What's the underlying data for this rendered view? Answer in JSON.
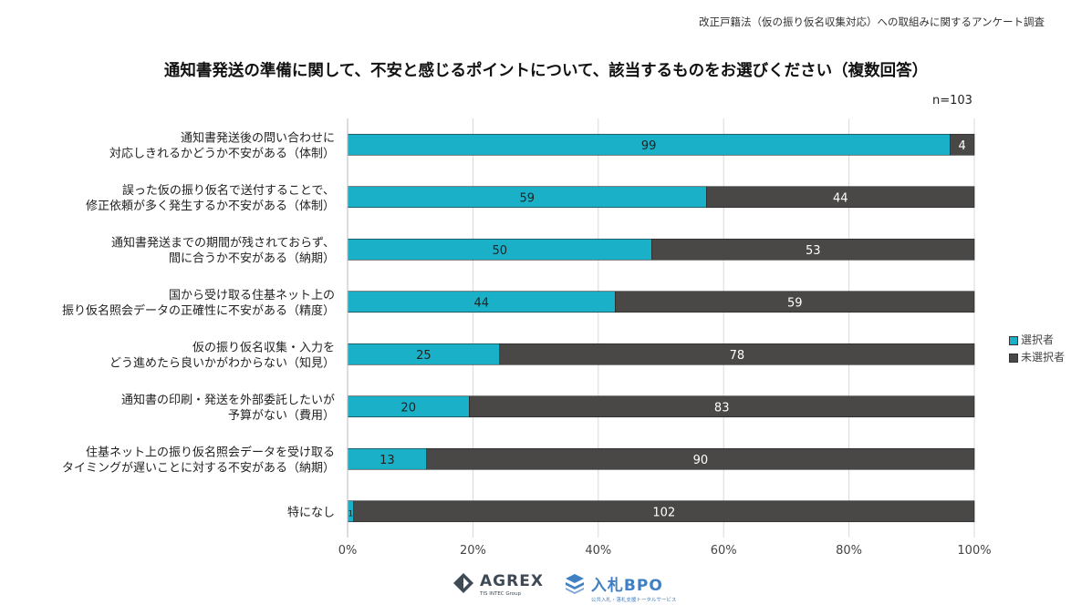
{
  "header": {
    "survey_title": "改正戸籍法（仮の振り仮名収集対応）への取組みに関するアンケート調査",
    "n_label": "n=103"
  },
  "colors": {
    "selected": "#1AB1C8",
    "not_selected": "#4A4747",
    "grid": "#D9D9D9"
  },
  "chart_data": {
    "type": "bar",
    "orientation": "horizontal",
    "stacked": "percent",
    "title": "通知書発送の準備に関して、不安と感じるポイントについて、該当するものをお選びください（複数回答）",
    "categories": [
      [
        "通知書発送後の問い合わせに",
        "対応しきれるかどうか不安がある（体制）"
      ],
      [
        "誤った仮の振り仮名で送付することで、",
        "修正依頼が多く発生するか不安がある（体制）"
      ],
      [
        "通知書発送までの期間が残されておらず、",
        "間に合うか不安がある（納期）"
      ],
      [
        "国から受け取る住基ネット上の",
        "振り仮名照会データの正確性に不安がある（精度）"
      ],
      [
        "仮の振り仮名収集・入力を",
        "どう進めたら良いかがわからない（知見）"
      ],
      [
        "通知書の印刷・発送を外部委託したいが",
        "予算がない（費用）"
      ],
      [
        "住基ネット上の振り仮名照会データを受け取る",
        "タイミングが遅いことに対する不安がある（納期）"
      ],
      [
        "特になし"
      ]
    ],
    "series": [
      {
        "name": "選択者",
        "values": [
          99,
          59,
          50,
          44,
          25,
          20,
          13,
          1
        ]
      },
      {
        "name": "未選択者",
        "values": [
          4,
          44,
          53,
          59,
          78,
          83,
          90,
          102
        ]
      }
    ],
    "xticks": [
      "0%",
      "20%",
      "40%",
      "60%",
      "80%",
      "100%"
    ],
    "xlim": [
      0,
      100
    ],
    "grid": true,
    "legend": "right"
  },
  "logos": {
    "agrex": {
      "name": "AGREX",
      "sub": "TIS INTEC Group"
    },
    "bpo": {
      "name": "入札BPO",
      "sub": "公共入札・落札支援トータルサービス"
    }
  }
}
